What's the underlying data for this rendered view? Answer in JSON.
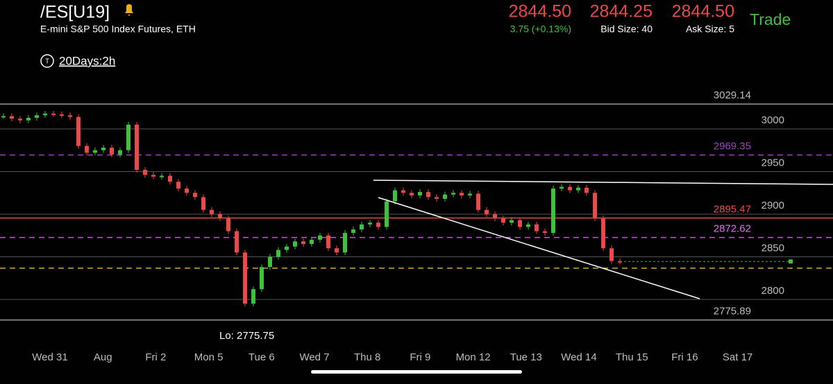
{
  "header": {
    "symbol": "/ES[U19]",
    "description": "E-mini S&P 500 Index Futures, ETH",
    "last": "2844.50",
    "change": "3.75 (+0.13%)",
    "bid": "2844.25",
    "bid_size": "Bid Size: 40",
    "ask": "2844.50",
    "ask_size": "Ask Size: 5",
    "trade_button": "Trade",
    "timeframe_icon": "T",
    "timeframe": "20Days:2h"
  },
  "chart_data": {
    "type": "candlestick",
    "closes": [
      3015,
      3012,
      3010,
      3013,
      3016,
      3018,
      3017,
      3016,
      3014,
      2980,
      2972,
      2975,
      2978,
      2970,
      2975,
      3005,
      2952,
      2946,
      2944,
      2945,
      2938,
      2930,
      2925,
      2920,
      2905,
      2900,
      2895,
      2880,
      2855,
      2795,
      2812,
      2838,
      2850,
      2858,
      2862,
      2868,
      2865,
      2870,
      2875,
      2860,
      2855,
      2878,
      2882,
      2888,
      2890,
      2885,
      2915,
      2928,
      2925,
      2922,
      2926,
      2920,
      2918,
      2923,
      2925,
      2922,
      2924,
      2905,
      2900,
      2895,
      2890,
      2893,
      2885,
      2888,
      2880,
      2878,
      2930,
      2932,
      2928,
      2931,
      2925,
      2895,
      2860,
      2845,
      2844.5
    ],
    "up_color": "#3fc03f",
    "down_color": "#e84a4a",
    "ylim": [
      2752.8,
      3045.5
    ],
    "yticks": [
      2800,
      2850,
      2900,
      2950,
      3000
    ],
    "levels": [
      {
        "value": 3029.14,
        "color": "#9a9a9a",
        "label_color": "#bdbdbd",
        "dashed": false,
        "show_label": true
      },
      {
        "value": 2969.35,
        "color": "#a040c0",
        "label_color": "#a040c0",
        "dashed": true,
        "show_label": true
      },
      {
        "value": 2895.47,
        "color": "#e84a4a",
        "label_color": "#e84a4a",
        "dashed": false,
        "show_label": true
      },
      {
        "value": 2872.62,
        "color": "#d050e0",
        "label_color": "#e070f0",
        "dashed": true,
        "show_label": true
      },
      {
        "value": 2836.6,
        "color": "#e0a030",
        "label_color": "#e0a030",
        "dashed": true,
        "show_label": false
      },
      {
        "value": 2775.89,
        "color": "#9a9a9a",
        "label_color": "#bdbdbd",
        "dashed": false,
        "show_label": true
      }
    ],
    "low_label": "Lo: 2775.75",
    "x_labels": [
      "Wed 31",
      "Aug",
      "Fri 2",
      "Mon 5",
      "Tue 6",
      "Wed 7",
      "Thu 8",
      "Fri 9",
      "Mon 12",
      "Tue 13",
      "Wed 14",
      "Thu 15",
      "Fri 16",
      "Sat 17"
    ]
  }
}
